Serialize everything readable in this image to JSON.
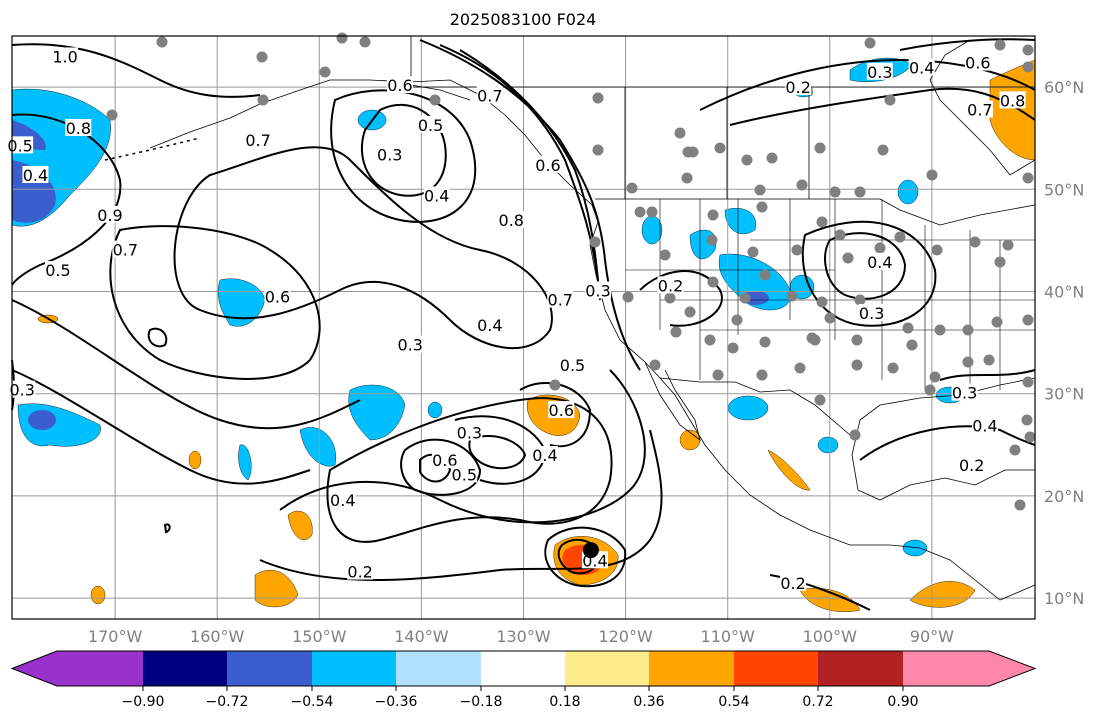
{
  "title": "2025083100 F024",
  "lon_ticks": [
    "170°W",
    "160°W",
    "150°W",
    "140°W",
    "130°W",
    "120°W",
    "110°W",
    "100°W",
    "90°W"
  ],
  "lat_ticks": [
    "10°N",
    "20°N",
    "30°N",
    "40°N",
    "50°N",
    "60°N"
  ],
  "colorbar": {
    "ticks": [
      "−0.90",
      "−0.72",
      "−0.54",
      "−0.36",
      "−0.18",
      "0.18",
      "0.36",
      "0.54",
      "0.72",
      "0.90"
    ],
    "colors": [
      "#9932cc",
      "#000080",
      "#3a5fcd",
      "#00bfff",
      "#b0e2ff",
      "#ffffff",
      "#ffec8b",
      "#ffa500",
      "#ff4500",
      "#b22222",
      "#ff88aa"
    ]
  },
  "contour_labels": [
    {
      "v": "1.0",
      "lon": -174.9,
      "lat": 63.0
    },
    {
      "v": "0.8",
      "lon": -173.6,
      "lat": 56.0
    },
    {
      "v": "0.5",
      "lon": -179.3,
      "lat": 54.3
    },
    {
      "v": "0.4",
      "lon": -177.8,
      "lat": 51.4
    },
    {
      "v": "0.9",
      "lon": -170.5,
      "lat": 47.5
    },
    {
      "v": "0.7",
      "lon": -169.0,
      "lat": 44.1
    },
    {
      "v": "0.5",
      "lon": -175.6,
      "lat": 42.1
    },
    {
      "v": "0.6",
      "lon": -154.1,
      "lat": 39.5
    },
    {
      "v": "0.7",
      "lon": -156.0,
      "lat": 54.8
    },
    {
      "v": "0.6",
      "lon": -142.1,
      "lat": 60.2
    },
    {
      "v": "0.5",
      "lon": -139.1,
      "lat": 56.3
    },
    {
      "v": "0.3",
      "lon": -143.1,
      "lat": 53.4
    },
    {
      "v": "0.4",
      "lon": -138.5,
      "lat": 49.4
    },
    {
      "v": "0.8",
      "lon": -131.2,
      "lat": 47.0
    },
    {
      "v": "0.7",
      "lon": -133.3,
      "lat": 59.2
    },
    {
      "v": "0.6",
      "lon": -127.6,
      "lat": 52.4
    },
    {
      "v": "0.7",
      "lon": -126.4,
      "lat": 39.2
    },
    {
      "v": "0.3",
      "lon": -122.7,
      "lat": 40.1
    },
    {
      "v": "0.4",
      "lon": -133.3,
      "lat": 36.7
    },
    {
      "v": "0.3",
      "lon": -141.1,
      "lat": 34.8
    },
    {
      "v": "0.5",
      "lon": -125.2,
      "lat": 32.8
    },
    {
      "v": "0.6",
      "lon": -126.3,
      "lat": 28.4
    },
    {
      "v": "0.3",
      "lon": -135.3,
      "lat": 26.2
    },
    {
      "v": "0.6",
      "lon": -137.7,
      "lat": 23.5
    },
    {
      "v": "0.5",
      "lon": -135.8,
      "lat": 22.1
    },
    {
      "v": "0.4",
      "lon": -127.9,
      "lat": 24.0
    },
    {
      "v": "0.4",
      "lon": -147.7,
      "lat": 19.6
    },
    {
      "v": "0.2",
      "lon": -146.0,
      "lat": 12.6
    },
    {
      "v": "0.4",
      "lon": -123.0,
      "lat": 13.7
    },
    {
      "v": "0.3",
      "lon": -179.1,
      "lat": 30.4
    },
    {
      "v": "0.2",
      "lon": -103.1,
      "lat": 60.0
    },
    {
      "v": "0.3",
      "lon": -95.1,
      "lat": 61.5
    },
    {
      "v": "0.4",
      "lon": -91.0,
      "lat": 61.9
    },
    {
      "v": "0.6",
      "lon": -85.5,
      "lat": 62.4
    },
    {
      "v": "0.7",
      "lon": -85.3,
      "lat": 57.8
    },
    {
      "v": "0.8",
      "lon": -82.1,
      "lat": 58.7
    },
    {
      "v": "0.2",
      "lon": -115.6,
      "lat": 40.6
    },
    {
      "v": "0.4",
      "lon": -95.1,
      "lat": 42.9
    },
    {
      "v": "0.3",
      "lon": -95.9,
      "lat": 37.9
    },
    {
      "v": "0.3",
      "lon": -86.8,
      "lat": 30.1
    },
    {
      "v": "0.4",
      "lon": -84.8,
      "lat": 26.9
    },
    {
      "v": "0.2",
      "lon": -86.1,
      "lat": 23.0
    },
    {
      "v": "0.2",
      "lon": -103.6,
      "lat": 11.5
    }
  ],
  "storm_center": {
    "lon": -123.4,
    "lat": 14.7
  }
}
